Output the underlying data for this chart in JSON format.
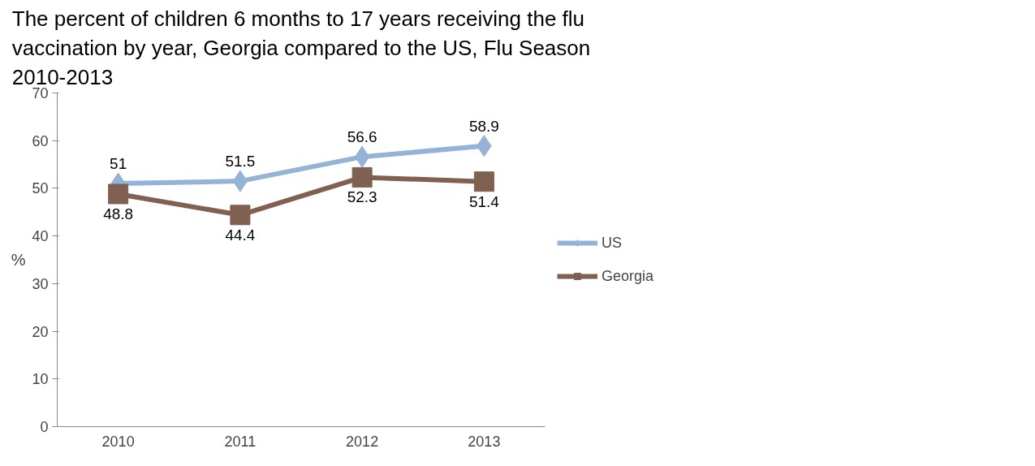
{
  "chart_data": {
    "type": "line",
    "title": "The percent of children 6 months to 17 years receiving the flu vaccination by year, Georgia compared to the US, Flu Season 2010-2013",
    "ylabel": "%",
    "categories": [
      "2010",
      "2011",
      "2012",
      "2013"
    ],
    "series": [
      {
        "name": "US",
        "color": "#95b3d7",
        "marker": "diamond",
        "values": [
          51,
          51.5,
          56.6,
          58.9
        ]
      },
      {
        "name": "Georgia",
        "color": "#7f6051",
        "marker": "square",
        "values": [
          48.8,
          44.4,
          52.3,
          51.4
        ]
      }
    ],
    "ylim": [
      0,
      70
    ],
    "yticks": [
      0,
      10,
      20,
      30,
      40,
      50,
      60,
      70
    ],
    "grid": false,
    "legend": "right",
    "data_labels": true,
    "line_style": "solid"
  }
}
